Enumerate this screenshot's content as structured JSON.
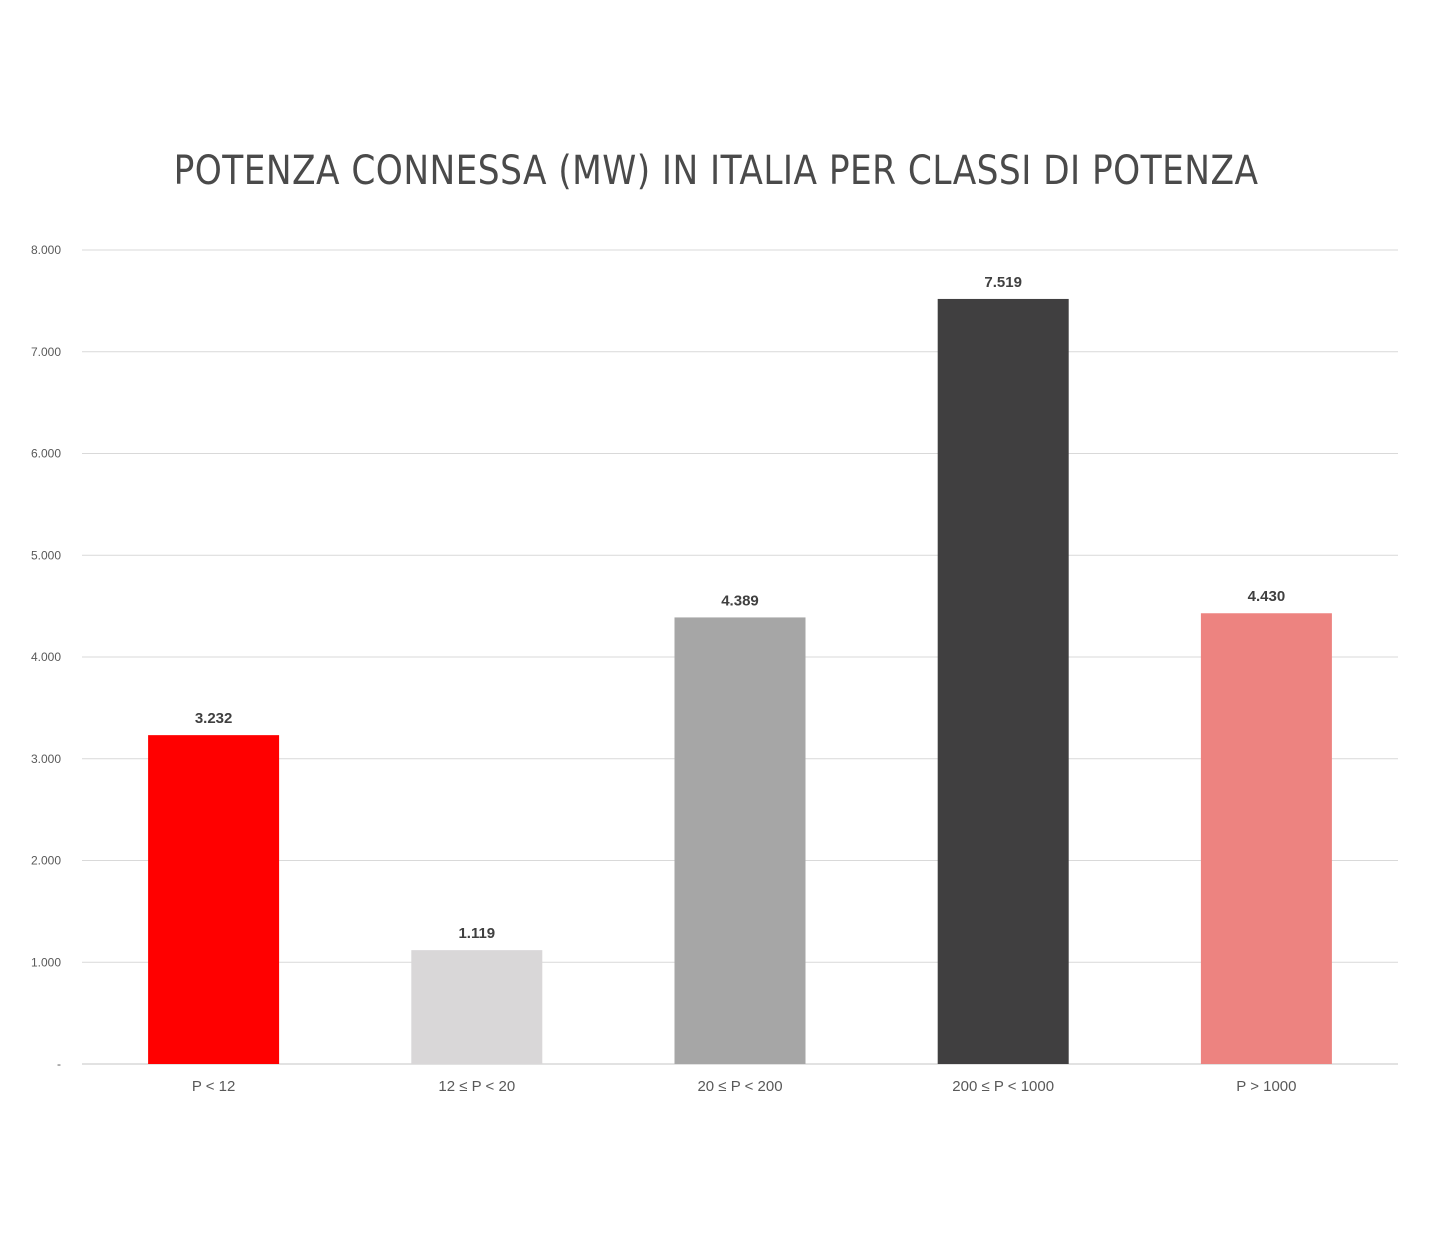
{
  "chart_data": {
    "type": "bar",
    "title": "POTENZA CONNESSA (MW) IN ITALIA PER CLASSI DI POTENZA",
    "xlabel": "",
    "ylabel": "",
    "categories": [
      "P < 12",
      "12 ≤ P < 20",
      "20 ≤ P < 200",
      "200 ≤ P < 1000",
      "P > 1000"
    ],
    "values": [
      3232,
      1119,
      4389,
      7519,
      4430
    ],
    "value_labels": [
      "3.232",
      "1.119",
      "4.389",
      "7.519",
      "4.430"
    ],
    "bar_colors": [
      "#ff0000",
      "#d9d7d8",
      "#a6a6a6",
      "#403f40",
      "#ed8380"
    ],
    "ylim": [
      0,
      8000
    ],
    "yticks": [
      0,
      1000,
      2000,
      3000,
      4000,
      5000,
      6000,
      7000,
      8000
    ],
    "ytick_labels": [
      "-",
      "1.000",
      "2.000",
      "3.000",
      "4.000",
      "5.000",
      "6.000",
      "7.000",
      "8.000"
    ],
    "grid": true,
    "legend": "none"
  }
}
